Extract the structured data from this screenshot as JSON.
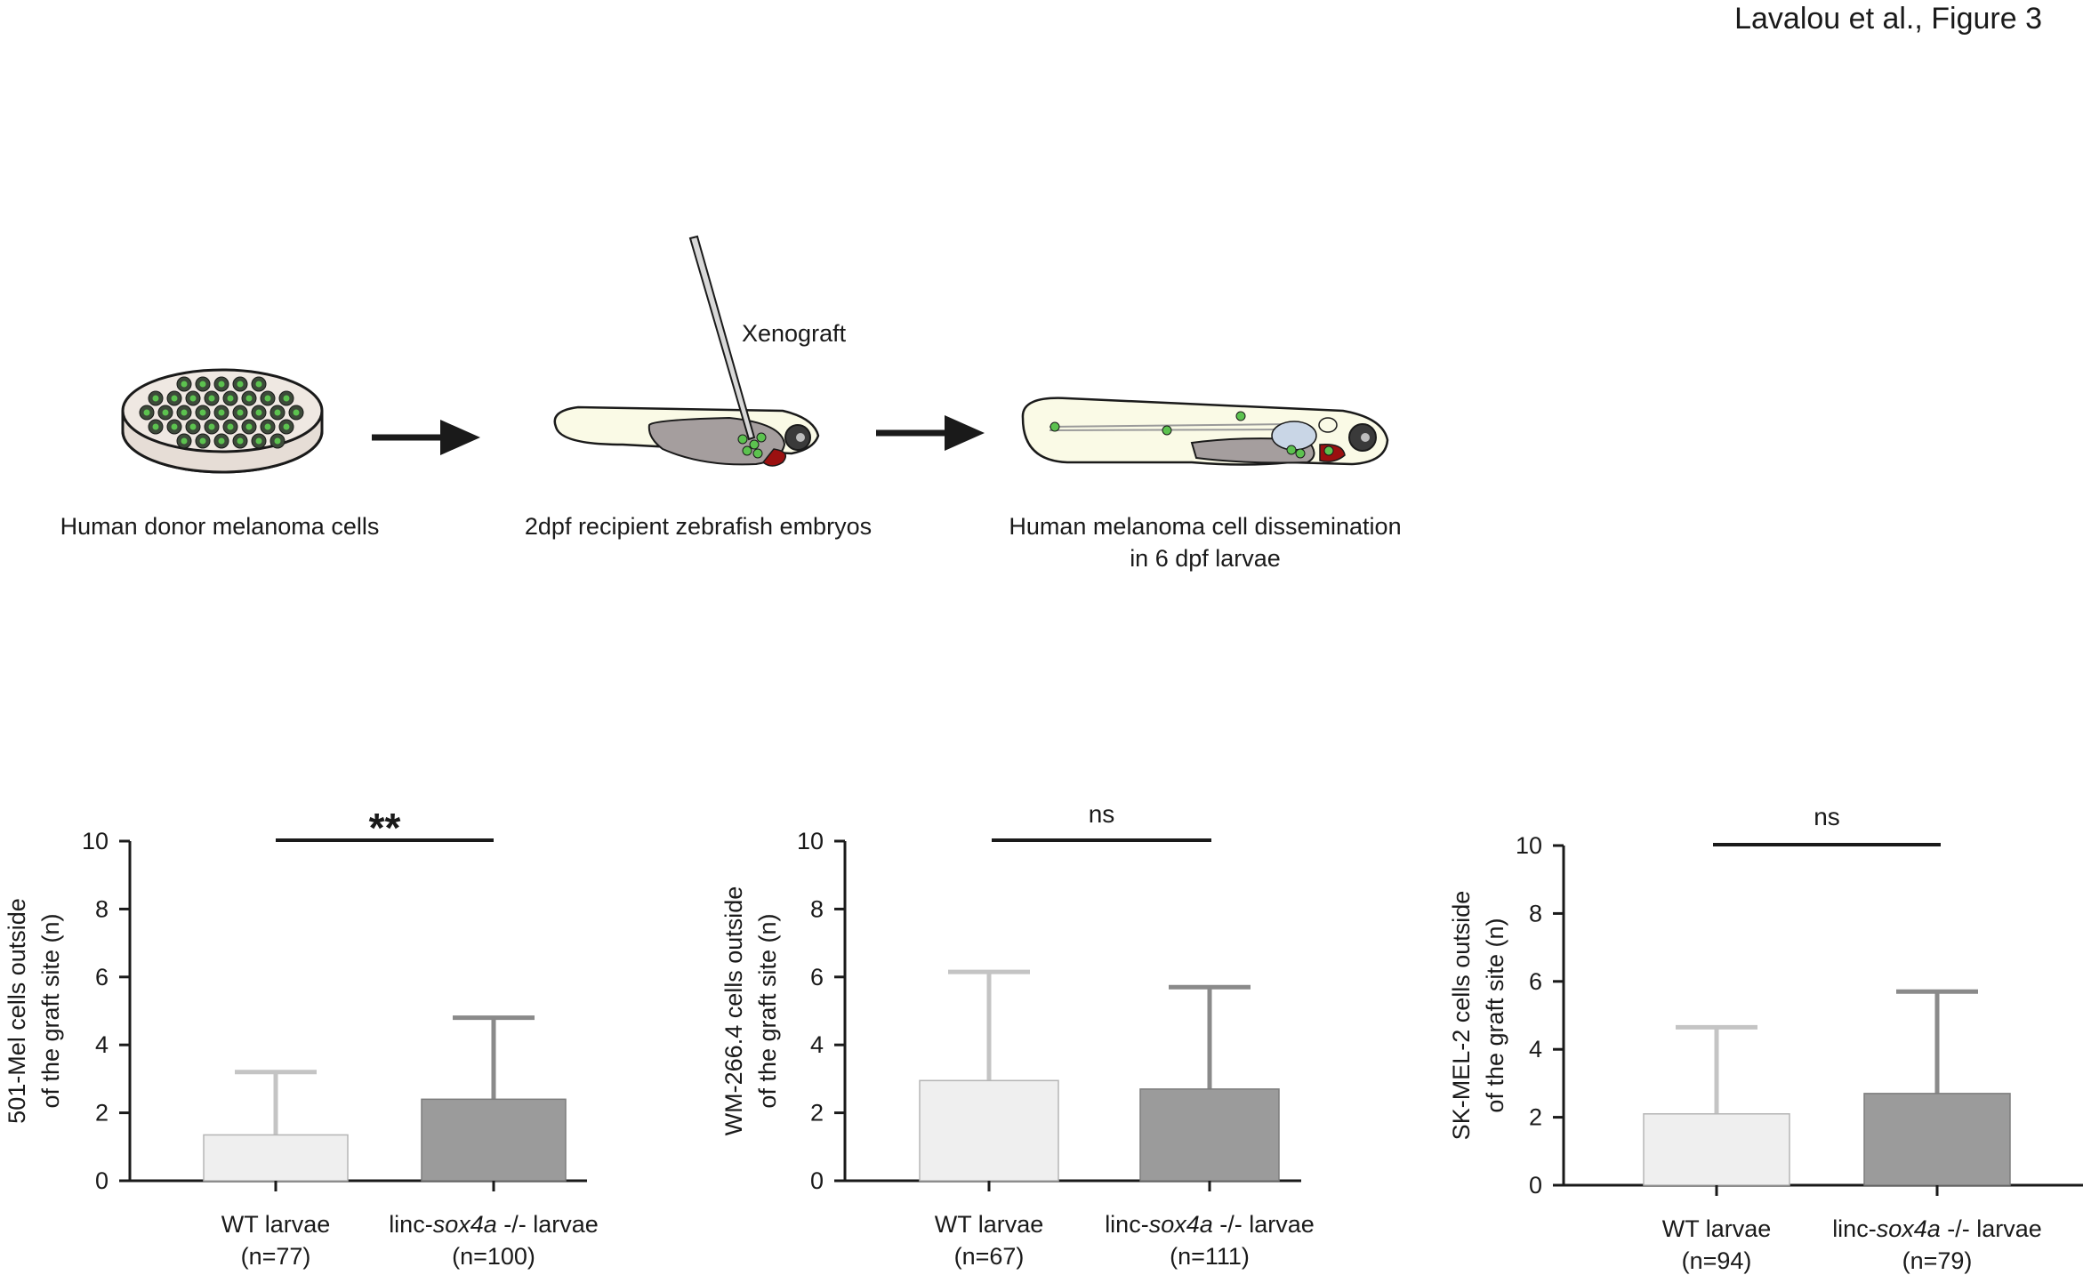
{
  "figure_title": "Lavalou et al., Figure 3",
  "schematic": {
    "step1_caption": "Human donor melanoma cells",
    "step2_caption": "2dpf recipient zebrafish embryos",
    "step2_label": "Xenograft",
    "step3_caption_line1": "Human melanoma cell dissemination",
    "step3_caption_line2": "in 6 dpf larvae"
  },
  "colors": {
    "wt_bar": "#efefef",
    "ko_bar": "#9b9b9b",
    "wt_error": "#c4c4c4",
    "ko_error": "#8a8a8a",
    "axis": "#1a1a1a"
  },
  "chart_data": [
    {
      "type": "bar",
      "ylabel_line1": "501-Mel cells outside",
      "ylabel_line2": "of the graft site (n)",
      "ylim": [
        0,
        10
      ],
      "yticks": [
        0,
        2,
        4,
        6,
        8,
        10
      ],
      "significance": "**",
      "categories": [
        {
          "label_prefix": "WT larvae",
          "label_italic": "",
          "label_suffix": "",
          "n_label": "(n=77)",
          "value": 1.35,
          "error_upper": 3.2
        },
        {
          "label_prefix": "linc-",
          "label_italic": "sox4a",
          "label_suffix": " -/- larvae",
          "n_label": "(n=100)",
          "value": 2.4,
          "error_upper": 4.8
        }
      ]
    },
    {
      "type": "bar",
      "ylabel_line1": "WM-266.4 cells outside",
      "ylabel_line2": "of the graft site (n)",
      "ylim": [
        0,
        10
      ],
      "yticks": [
        0,
        2,
        4,
        6,
        8,
        10
      ],
      "significance": "ns",
      "categories": [
        {
          "label_prefix": "WT larvae",
          "label_italic": "",
          "label_suffix": "",
          "n_label": "(n=67)",
          "value": 2.95,
          "error_upper": 6.15
        },
        {
          "label_prefix": "linc-",
          "label_italic": "sox4a",
          "label_suffix": " -/- larvae",
          "n_label": "(n=111)",
          "value": 2.7,
          "error_upper": 5.7
        }
      ]
    },
    {
      "type": "bar",
      "ylabel_line1": "SK-MEL-2 cells outside",
      "ylabel_line2": "of the graft site (n)",
      "ylim": [
        0,
        10
      ],
      "yticks": [
        0,
        2,
        4,
        6,
        8,
        10
      ],
      "significance": "ns",
      "categories": [
        {
          "label_prefix": "WT larvae",
          "label_italic": "",
          "label_suffix": "",
          "n_label": "(n=94)",
          "value": 2.1,
          "error_upper": 4.65
        },
        {
          "label_prefix": "linc-",
          "label_italic": "sox4a",
          "label_suffix": " -/- larvae",
          "n_label": "(n=79)",
          "value": 2.7,
          "error_upper": 5.7
        }
      ]
    }
  ]
}
